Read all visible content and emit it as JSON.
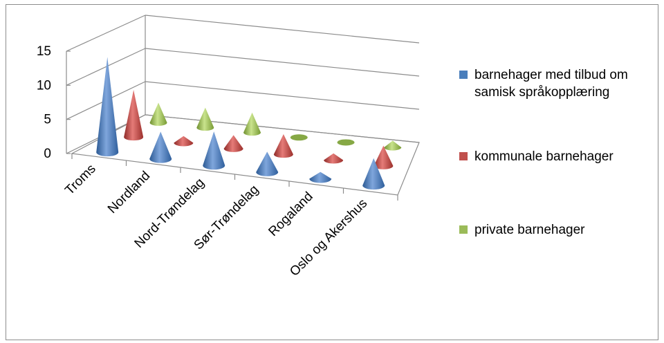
{
  "chart_data": {
    "type": "bar",
    "subtype": "3d-cone",
    "categories": [
      "Troms",
      "Nordland",
      "Nord-Trøndelag",
      "Sør-Trøndelag",
      "Rogaland",
      "Oslo og Akershus"
    ],
    "series": [
      {
        "name": "barnehager med tilbud om samisk språkopplæring",
        "color": "#4a7ebb",
        "values": [
          14,
          4,
          5,
          3,
          1,
          4
        ]
      },
      {
        "name": "kommunale barnehager",
        "color": "#c0504d",
        "values": [
          7,
          1,
          2,
          3,
          1,
          3
        ]
      },
      {
        "name": "private barnehager",
        "color": "#9bbb59",
        "values": [
          3,
          3,
          3,
          0,
          0,
          1
        ]
      }
    ],
    "ylim": [
      0,
      15
    ],
    "yticks": [
      "0",
      "5",
      "10",
      "15"
    ],
    "grid": true,
    "legend_position": "right"
  }
}
